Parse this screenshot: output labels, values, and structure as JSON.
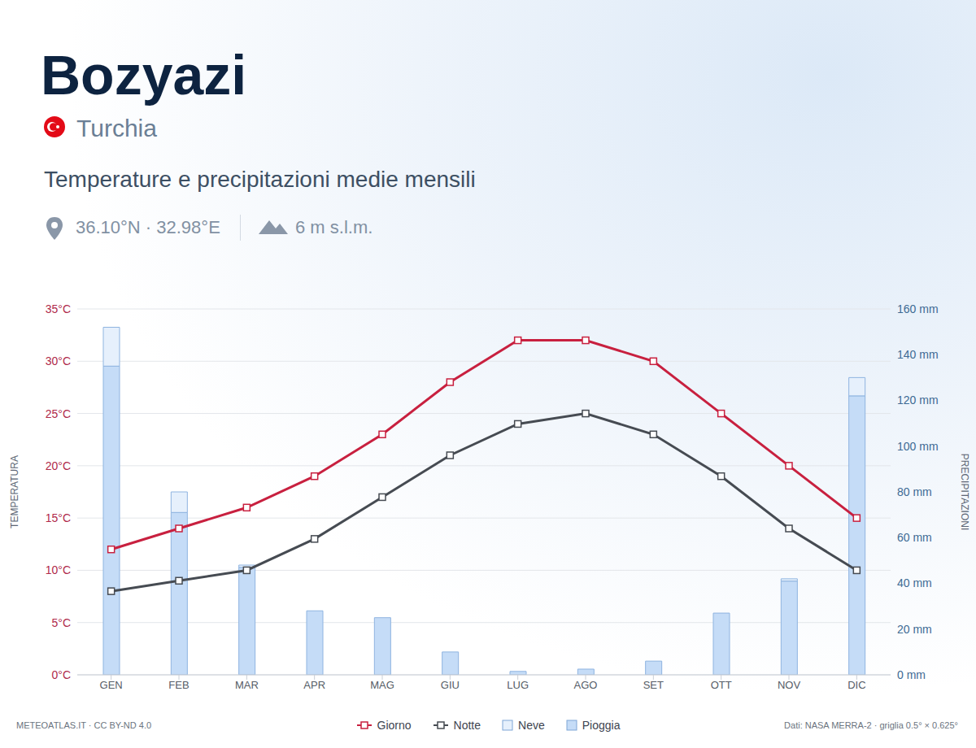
{
  "header": {
    "title": "Bozyazi",
    "country": "Turchia",
    "subtitle": "Temperature e precipitazioni medie mensili",
    "coordinates": "36.10°N · 32.98°E",
    "elevation": "6 m s.l.m."
  },
  "footer": {
    "left": "METEOATLAS.IT · CC BY-ND 4.0",
    "right": "Dati: NASA MERRA-2 · griglia 0.5° × 0.625°"
  },
  "chart_data": {
    "type": "combo",
    "categories": [
      "GEN",
      "FEB",
      "MAR",
      "APR",
      "MAG",
      "GIU",
      "LUG",
      "AGO",
      "SET",
      "OTT",
      "NOV",
      "DIC"
    ],
    "y_label": "TEMPERATURA",
    "y2_label": "PRECIPITAZIONI",
    "ylim": [
      0,
      35
    ],
    "yticks": [
      {
        "value": 0,
        "label": "0°C"
      },
      {
        "value": 5,
        "label": "5°C"
      },
      {
        "value": 10,
        "label": "10°C"
      },
      {
        "value": 15,
        "label": "15°C"
      },
      {
        "value": 20,
        "label": "20°C"
      },
      {
        "value": 25,
        "label": "25°C"
      },
      {
        "value": 30,
        "label": "30°C"
      },
      {
        "value": 35,
        "label": "35°C"
      }
    ],
    "y2lim": [
      0,
      160
    ],
    "y2ticks": [
      {
        "value": 0,
        "label": "0 mm"
      },
      {
        "value": 20,
        "label": "20 mm"
      },
      {
        "value": 40,
        "label": "40 mm"
      },
      {
        "value": 60,
        "label": "60 mm"
      },
      {
        "value": 80,
        "label": "80 mm"
      },
      {
        "value": 100,
        "label": "100 mm"
      },
      {
        "value": 120,
        "label": "120 mm"
      },
      {
        "value": 140,
        "label": "140 mm"
      },
      {
        "value": 160,
        "label": "160 mm"
      }
    ],
    "grid": true,
    "legend": "bottom",
    "stacked": true,
    "series": [
      {
        "name": "Giorno",
        "type": "line",
        "color": "#c8203f",
        "marker": "square",
        "values": [
          12,
          14,
          16,
          19,
          23,
          28,
          32,
          32,
          30,
          25,
          20,
          15
        ]
      },
      {
        "name": "Notte",
        "type": "line",
        "color": "#464b52",
        "marker": "square",
        "values": [
          8,
          9,
          10,
          13,
          17,
          21,
          24,
          25,
          23,
          19,
          14,
          10
        ]
      },
      {
        "name": "Neve",
        "type": "bar",
        "axis": "y2",
        "color": "#e6f0fc",
        "values": [
          17,
          9,
          1,
          0,
          0,
          0,
          0,
          0,
          0,
          0,
          1,
          8
        ]
      },
      {
        "name": "Pioggia",
        "type": "bar",
        "axis": "y2",
        "color": "#c5dcf7",
        "values": [
          135,
          71,
          47,
          28,
          25,
          10,
          1.5,
          2.5,
          6,
          27,
          41,
          122
        ]
      }
    ]
  }
}
